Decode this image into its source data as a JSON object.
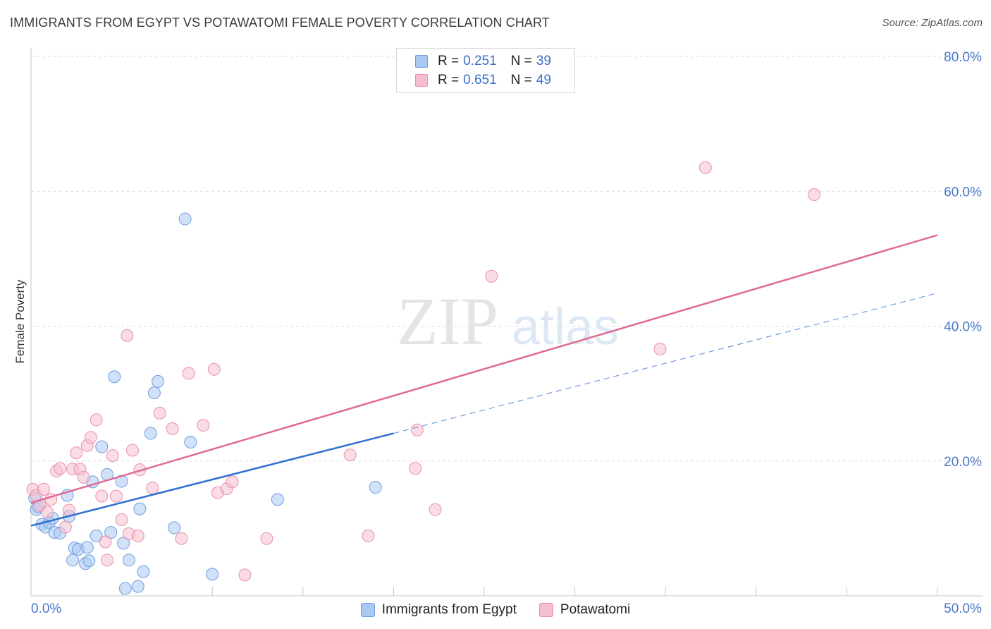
{
  "title": "IMMIGRANTS FROM EGYPT VS POTAWATOMI FEMALE POVERTY CORRELATION CHART",
  "source": "Source: ZipAtlas.com",
  "watermark": {
    "zip": "ZIP",
    "atlas": "atlas"
  },
  "colors": {
    "blue_fill": "#a9c8f2",
    "blue_stroke": "#6f9ee0",
    "blue_line": "#2f6fd0",
    "pink_fill": "#f6bfd0",
    "pink_stroke": "#e98fac",
    "pink_line": "#e06a96",
    "tick_label": "#4a78c8"
  },
  "legend_top": {
    "rows": [
      {
        "r_label": "R =",
        "r_value": "0.251",
        "n_label": "N =",
        "n_value": "39"
      },
      {
        "r_label": "R =",
        "r_value": "0.651",
        "n_label": "N =",
        "n_value": "49"
      }
    ]
  },
  "legend_bottom": {
    "items": [
      {
        "label": "Immigrants from Egypt"
      },
      {
        "label": "Potawatomi"
      }
    ]
  },
  "chart_data": {
    "type": "scatter",
    "title": "IMMIGRANTS FROM EGYPT VS POTAWATOMI FEMALE POVERTY CORRELATION CHART",
    "xlabel": "",
    "ylabel": "Female Poverty",
    "xlim": [
      0,
      50
    ],
    "ylim": [
      0,
      80
    ],
    "x_tick_labels": [
      "0.0%",
      "50.0%"
    ],
    "y_ticks": [
      20,
      40,
      60,
      80
    ],
    "y_tick_labels": [
      "20.0%",
      "40.0%",
      "60.0%",
      "80.0%"
    ],
    "grid": true,
    "series": [
      {
        "name": "Immigrants from Egypt",
        "r": 0.251,
        "n": 39,
        "trend": {
          "x0": 0,
          "y0": 10.4,
          "x1": 20,
          "y1": 24.1,
          "dash_x1": 50,
          "dash_y1": 44.9
        },
        "points": [
          [
            0.2,
            14.5
          ],
          [
            0.3,
            12.8
          ],
          [
            0.4,
            13.2
          ],
          [
            0.6,
            10.6
          ],
          [
            0.8,
            10.2
          ],
          [
            1.0,
            10.9
          ],
          [
            1.2,
            11.5
          ],
          [
            1.3,
            9.4
          ],
          [
            1.6,
            9.3
          ],
          [
            2.0,
            14.9
          ],
          [
            2.1,
            11.8
          ],
          [
            2.4,
            7.1
          ],
          [
            2.6,
            6.9
          ],
          [
            2.3,
            5.3
          ],
          [
            3.0,
            4.8
          ],
          [
            3.2,
            5.2
          ],
          [
            3.1,
            7.2
          ],
          [
            3.4,
            16.9
          ],
          [
            3.6,
            8.9
          ],
          [
            3.9,
            22.1
          ],
          [
            4.2,
            18.0
          ],
          [
            4.4,
            9.4
          ],
          [
            4.6,
            32.5
          ],
          [
            5.0,
            17.0
          ],
          [
            5.1,
            7.8
          ],
          [
            5.4,
            5.3
          ],
          [
            5.2,
            1.1
          ],
          [
            5.9,
            1.4
          ],
          [
            6.0,
            12.9
          ],
          [
            6.2,
            3.6
          ],
          [
            6.6,
            24.1
          ],
          [
            6.8,
            30.1
          ],
          [
            7.0,
            31.8
          ],
          [
            7.9,
            10.1
          ],
          [
            8.5,
            55.9
          ],
          [
            8.8,
            22.8
          ],
          [
            10.0,
            3.2
          ],
          [
            13.6,
            14.3
          ],
          [
            19.0,
            16.1
          ]
        ]
      },
      {
        "name": "Potawatomi",
        "r": 0.651,
        "n": 49,
        "trend": {
          "x0": 0,
          "y0": 13.8,
          "x1": 50,
          "y1": 53.5
        },
        "points": [
          [
            0.1,
            15.8
          ],
          [
            0.3,
            14.9
          ],
          [
            0.5,
            13.4
          ],
          [
            0.7,
            15.8
          ],
          [
            0.9,
            12.4
          ],
          [
            1.1,
            14.3
          ],
          [
            1.4,
            18.5
          ],
          [
            1.6,
            18.9
          ],
          [
            1.9,
            10.2
          ],
          [
            2.1,
            12.7
          ],
          [
            2.3,
            18.8
          ],
          [
            2.5,
            21.2
          ],
          [
            2.7,
            18.8
          ],
          [
            2.9,
            17.6
          ],
          [
            3.1,
            22.3
          ],
          [
            3.3,
            23.5
          ],
          [
            3.6,
            26.1
          ],
          [
            3.9,
            14.8
          ],
          [
            4.1,
            8.0
          ],
          [
            4.2,
            5.3
          ],
          [
            4.5,
            20.8
          ],
          [
            4.7,
            14.8
          ],
          [
            5.0,
            11.3
          ],
          [
            5.3,
            38.6
          ],
          [
            5.4,
            9.2
          ],
          [
            5.6,
            21.6
          ],
          [
            5.9,
            8.9
          ],
          [
            6.0,
            18.7
          ],
          [
            6.7,
            16.0
          ],
          [
            7.1,
            27.1
          ],
          [
            7.8,
            24.8
          ],
          [
            8.3,
            8.5
          ],
          [
            8.7,
            33.0
          ],
          [
            9.5,
            25.3
          ],
          [
            10.1,
            33.6
          ],
          [
            10.3,
            15.3
          ],
          [
            10.8,
            15.9
          ],
          [
            11.1,
            16.9
          ],
          [
            11.8,
            3.1
          ],
          [
            13.0,
            8.5
          ],
          [
            17.6,
            20.9
          ],
          [
            18.6,
            8.9
          ],
          [
            21.3,
            24.6
          ],
          [
            21.2,
            18.9
          ],
          [
            22.3,
            12.8
          ],
          [
            25.4,
            47.4
          ],
          [
            34.7,
            36.6
          ],
          [
            37.2,
            63.5
          ],
          [
            43.2,
            59.5
          ]
        ]
      }
    ]
  }
}
